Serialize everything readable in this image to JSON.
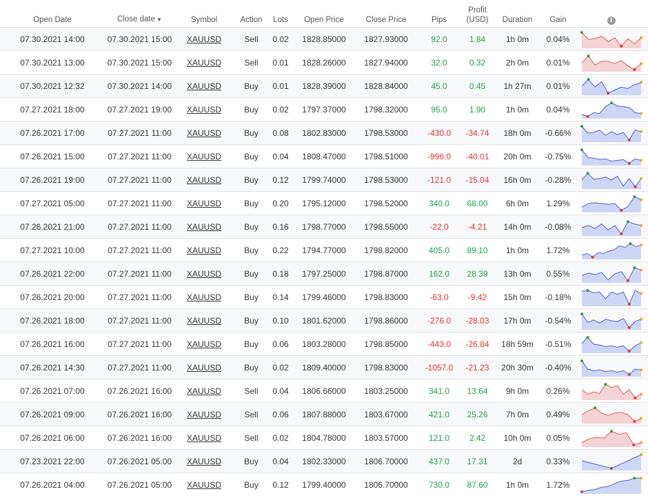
{
  "headers": {
    "open_date": "Open Date",
    "close_date": "Close date",
    "sort_indicator": "▼",
    "symbol": "Symbol",
    "action": "Action",
    "lots": "Lots",
    "open_price": "Open Price",
    "close_price": "Close Price",
    "pips": "Pips",
    "profit_line1": "Profit",
    "profit_line2": "(USD)",
    "duration": "Duration",
    "gain": "Gain",
    "info_icon": "i"
  },
  "colors": {
    "positive": "#1aa34a",
    "negative": "#e3342f",
    "buy_line": "#4a5fd4",
    "buy_fill": "#cdd7f5",
    "sell_line": "#e05a5a",
    "sell_fill": "#f3d3d5",
    "high_dot": "#2ca02c",
    "low_dot": "#e3342f",
    "last_dot": "#ff9f1a"
  },
  "trades": [
    {
      "open_date": "07.30.2021 14:00",
      "close_date": "07.30.2021 15:00",
      "symbol": "XAUUSD",
      "action": "Sell",
      "lots": "0.02",
      "open_price": "1828.85000",
      "close_price": "1827.93000",
      "pips": "92.0",
      "profit": "1.84",
      "duration": "1h 0m",
      "gain": "0.04%",
      "spark": [
        0.95,
        0.5,
        0.55,
        0.7,
        0.35,
        0.6,
        0.05,
        0.55,
        0.2,
        0.6
      ]
    },
    {
      "open_date": "07.30.2021 13:00",
      "close_date": "07.30.2021 15:00",
      "symbol": "XAUUSD",
      "action": "Sell",
      "lots": "0.01",
      "open_price": "1828.26000",
      "close_price": "1827.94000",
      "pips": "32.0",
      "profit": "0.32",
      "duration": "2h 0m",
      "gain": "0.01%",
      "spark": [
        0.5,
        0.95,
        0.35,
        0.6,
        0.6,
        0.45,
        0.65,
        0.3,
        0.05,
        0.45
      ]
    },
    {
      "open_date": "07.30.2021 12:32",
      "close_date": "07.30.2021 14:00",
      "symbol": "XAUUSD",
      "action": "Buy",
      "lots": "0.01",
      "open_price": "1828.39000",
      "close_price": "1828.84000",
      "pips": "45.0",
      "profit": "0.45",
      "duration": "1h 27m",
      "gain": "0.01%",
      "spark": [
        0.5,
        0.95,
        0.45,
        0.8,
        0.05,
        0.25,
        0.45,
        0.35,
        0.6,
        0.75
      ]
    },
    {
      "open_date": "07.27.2021 18:00",
      "close_date": "07.27.2021 19:00",
      "symbol": "XAUUSD",
      "action": "Buy",
      "lots": "0.02",
      "open_price": "1797.37000",
      "close_price": "1798.32000",
      "pips": "95.0",
      "profit": "1.90",
      "duration": "1h 0m",
      "gain": "0.04%",
      "spark": [
        0.2,
        0.05,
        0.3,
        0.25,
        0.7,
        0.95,
        0.75,
        0.7,
        0.65,
        0.3,
        0.25
      ]
    },
    {
      "open_date": "07.26.2021 17:00",
      "close_date": "07.27.2021 11:00",
      "symbol": "XAUUSD",
      "action": "Buy",
      "lots": "0.08",
      "open_price": "1802.83000",
      "close_price": "1798.53000",
      "pips": "-430.0",
      "profit": "-34.74",
      "duration": "18h 0m",
      "gain": "-0.66%",
      "spark": [
        0.95,
        0.5,
        0.55,
        0.7,
        0.35,
        0.6,
        0.4,
        0.55,
        0.05,
        0.7,
        0.6
      ]
    },
    {
      "open_date": "07.26.2021 15:00",
      "close_date": "07.27.2021 11:00",
      "symbol": "XAUUSD",
      "action": "Buy",
      "lots": "0.04",
      "open_price": "1808.47000",
      "close_price": "1798.51000",
      "pips": "-996.0",
      "profit": "-40.01",
      "duration": "20h 0m",
      "gain": "-0.75%",
      "spark": [
        0.95,
        0.45,
        0.4,
        0.3,
        0.35,
        0.2,
        0.25,
        0.3,
        0.05,
        0.35,
        0.25
      ]
    },
    {
      "open_date": "07.26.2021 19:00",
      "close_date": "07.27.2021 11:00",
      "symbol": "XAUUSD",
      "action": "Buy",
      "lots": "0.12",
      "open_price": "1799.74000",
      "close_price": "1798.53000",
      "pips": "-121.0",
      "profit": "-15.04",
      "duration": "16h 0m",
      "gain": "-0.28%",
      "spark": [
        0.5,
        0.95,
        0.55,
        0.6,
        0.7,
        0.5,
        0.75,
        0.1,
        0.6,
        0.05,
        0.6
      ]
    },
    {
      "open_date": "07.27.2021 05:00",
      "close_date": "07.27.2021 11:00",
      "symbol": "XAUUSD",
      "action": "Buy",
      "lots": "0.20",
      "open_price": "1795.12000",
      "close_price": "1798.52000",
      "pips": "340.0",
      "profit": "68.00",
      "duration": "6h 0m",
      "gain": "1.29%",
      "spark": [
        0.25,
        0.5,
        0.55,
        0.5,
        0.45,
        0.5,
        0.05,
        0.3,
        0.95,
        0.75
      ]
    },
    {
      "open_date": "07.26.2021 21:00",
      "close_date": "07.27.2021 11:00",
      "symbol": "XAUUSD",
      "action": "Buy",
      "lots": "0.16",
      "open_price": "1798.77000",
      "close_price": "1798.55000",
      "pips": "-22.0",
      "profit": "-4.21",
      "duration": "14h 0m",
      "gain": "-0.08%",
      "spark": [
        0.45,
        0.6,
        0.4,
        0.7,
        0.3,
        0.6,
        0.05,
        0.85,
        0.7,
        0.6
      ]
    },
    {
      "open_date": "07.27.2021 10:00",
      "close_date": "07.27.2021 11:00",
      "symbol": "XAUUSD",
      "action": "Buy",
      "lots": "0.22",
      "open_price": "1794.77000",
      "close_price": "1798.82000",
      "pips": "405.0",
      "profit": "89.10",
      "duration": "1h 0m",
      "gain": "1.72%",
      "spark": [
        0.2,
        0.3,
        0.05,
        0.35,
        0.3,
        0.45,
        0.55,
        0.8,
        0.7,
        0.95,
        0.75,
        0.85
      ]
    },
    {
      "open_date": "07.26.2021 22:00",
      "close_date": "07.27.2021 11:00",
      "symbol": "XAUUSD",
      "action": "Buy",
      "lots": "0.18",
      "open_price": "1797.25000",
      "close_price": "1798.87000",
      "pips": "162.0",
      "profit": "28.39",
      "duration": "13h 0m",
      "gain": "0.55%",
      "spark": [
        0.4,
        0.55,
        0.45,
        0.6,
        0.1,
        0.5,
        0.65,
        0.05,
        0.9,
        0.75
      ]
    },
    {
      "open_date": "07.26.2021 20:00",
      "close_date": "07.27.2021 11:00",
      "symbol": "XAUUSD",
      "action": "Buy",
      "lots": "0.14",
      "open_price": "1799.46000",
      "close_price": "1798.83000",
      "pips": "-63.0",
      "profit": "-9.42",
      "duration": "15h 0m",
      "gain": "-0.18%",
      "spark": [
        0.9,
        0.95,
        0.8,
        0.85,
        0.4,
        0.85,
        0.7,
        0.85,
        0.05,
        0.95,
        0.75
      ]
    },
    {
      "open_date": "07.26.2021 18:00",
      "close_date": "07.27.2021 11:00",
      "symbol": "XAUUSD",
      "action": "Buy",
      "lots": "0.10",
      "open_price": "1801.62000",
      "close_price": "1798.86000",
      "pips": "-276.0",
      "profit": "-28.03",
      "duration": "17h 0m",
      "gain": "-0.54%",
      "spark": [
        0.95,
        0.4,
        0.55,
        0.35,
        0.6,
        0.5,
        0.45,
        0.65,
        0.05,
        0.45,
        0.6
      ]
    },
    {
      "open_date": "07.26.2021 16:00",
      "close_date": "07.27.2021 11:00",
      "symbol": "XAUUSD",
      "action": "Buy",
      "lots": "0.06",
      "open_price": "1803.28000",
      "close_price": "1798.85000",
      "pips": "-443.0",
      "profit": "-26.84",
      "duration": "18h 59m",
      "gain": "-0.51%",
      "spark": [
        0.55,
        0.95,
        0.5,
        0.45,
        0.35,
        0.4,
        0.3,
        0.4,
        0.05,
        0.4,
        0.6
      ]
    },
    {
      "open_date": "07.26.2021 14:30",
      "close_date": "07.27.2021 11:00",
      "symbol": "XAUUSD",
      "action": "Buy",
      "lots": "0.02",
      "open_price": "1809.40000",
      "close_price": "1798.83000",
      "pips": "-1057.0",
      "profit": "-21.23",
      "duration": "20h 30m",
      "gain": "-0.40%",
      "spark": [
        0.95,
        0.4,
        0.3,
        0.35,
        0.25,
        0.3,
        0.2,
        0.3,
        0.05,
        0.4,
        0.35
      ]
    },
    {
      "open_date": "07.26.2021 07:00",
      "close_date": "07.26.2021 16:00",
      "symbol": "XAUUSD",
      "action": "Sell",
      "lots": "0.04",
      "open_price": "1806.66000",
      "close_price": "1803.25000",
      "pips": "341.0",
      "profit": "13.64",
      "duration": "9h 0m",
      "gain": "0.26%",
      "spark": [
        0.6,
        0.3,
        0.45,
        0.35,
        0.95,
        0.75,
        0.85,
        0.3,
        0.6,
        0.05,
        0.3
      ]
    },
    {
      "open_date": "07.26.2021 09:00",
      "close_date": "07.26.2021 16:00",
      "symbol": "XAUUSD",
      "action": "Sell",
      "lots": "0.06",
      "open_price": "1807.88000",
      "close_price": "1803.67000",
      "pips": "421.0",
      "profit": "25.26",
      "duration": "7h 0m",
      "gain": "0.49%",
      "spark": [
        0.5,
        0.75,
        0.95,
        0.6,
        0.45,
        0.6,
        0.65,
        0.5,
        0.05,
        0.25
      ]
    },
    {
      "open_date": "07.26.2021 06:00",
      "close_date": "07.26.2021 16:00",
      "symbol": "XAUUSD",
      "action": "Sell",
      "lots": "0.02",
      "open_price": "1804.78000",
      "close_price": "1803.57000",
      "pips": "121.0",
      "profit": "2.42",
      "duration": "10h 0m",
      "gain": "0.05%",
      "spark": [
        0.2,
        0.45,
        0.55,
        0.5,
        0.95,
        0.75,
        0.85,
        0.05,
        0.2
      ]
    },
    {
      "open_date": "07.23.2021 22:00",
      "close_date": "07.26.2021 05:00",
      "symbol": "XAUUSD",
      "action": "Buy",
      "lots": "0.04",
      "open_price": "1802.33000",
      "close_price": "1806.70000",
      "pips": "437.0",
      "profit": "17.31",
      "duration": "2d",
      "gain": "0.33%",
      "spark": [
        0.55,
        0.3,
        0.05,
        0.5,
        0.95
      ]
    },
    {
      "open_date": "07.26.2021 04:00",
      "close_date": "07.26.2021 05:00",
      "symbol": "XAUUSD",
      "action": "Buy",
      "lots": "0.12",
      "open_price": "1799.40000",
      "close_price": "1806.70000",
      "pips": "730.0",
      "profit": "87.60",
      "duration": "1h 0m",
      "gain": "1.72%",
      "spark": [
        0.05,
        0.15,
        0.2,
        0.35,
        0.4,
        0.6,
        0.75,
        0.8,
        0.95,
        0.95
      ]
    }
  ]
}
